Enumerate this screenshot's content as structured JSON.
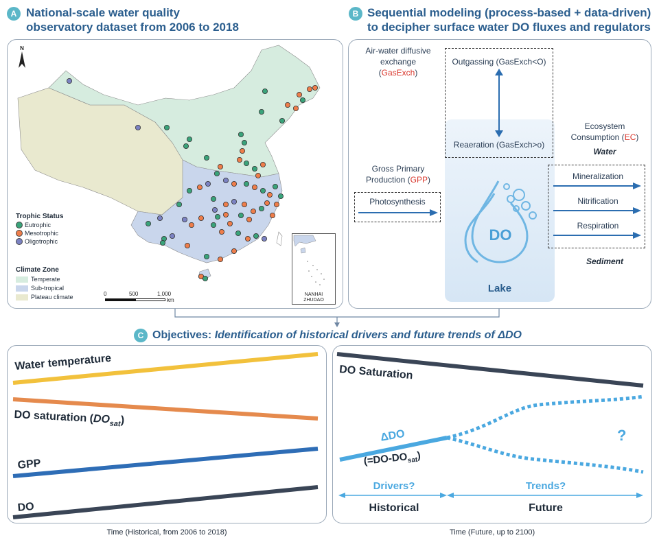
{
  "panel_a": {
    "badge": "A",
    "title_line1": "National-scale water quality",
    "title_line2": "observatory dataset from 2006 to 2018",
    "north": "N",
    "legend_trophic_title": "Trophic Status",
    "legend_trophic": [
      "Eutrophic",
      "Mesotrophic",
      "Oligotrophic"
    ],
    "legend_climate_title": "Climate Zone",
    "legend_climate": [
      "Temperate",
      "Sub-tropical",
      "Plateau climate"
    ],
    "scale_ticks": [
      "0",
      "500",
      "1,000"
    ],
    "scale_unit": "km",
    "inset_label_1": "NANHAI",
    "inset_label_2": "ZHUDAO",
    "colors": {
      "eutrophic": "#3aa37a",
      "mesotrophic": "#ee7d4a",
      "oligotrophic": "#7b82c2",
      "temperate": "#d6ecdf",
      "subtropical": "#c9d6ec",
      "plateau": "#e9e9cf"
    }
  },
  "panel_b": {
    "badge": "B",
    "title_line1": "Sequential modeling (process-based + data-driven)",
    "title_line2": "to decipher surface water DO fluxes and regulators",
    "gasexch_label_1": "Air-water diffusive",
    "gasexch_label_2": "exchange (",
    "gasexch_abbr": "GasExch",
    "gasexch_close": ")",
    "outgassing": "Outgassing (GasExch<O)",
    "reaeration": "Reaeration (GasExch>o)",
    "gpp_label_1": "Gross Primary",
    "gpp_label_2": "Production (",
    "gpp_abbr": "GPP",
    "gpp_close": ")",
    "photosynthesis": "Photosynthesis",
    "ec_label_1": "Ecosystem",
    "ec_label_2": "Consumption (",
    "ec_abbr": "EC",
    "ec_close": ")",
    "water": "Water",
    "processes": [
      "Mineralization",
      "Nitrification",
      "Respiration"
    ],
    "sediment": "Sediment",
    "do_label": "DO",
    "lake": "Lake"
  },
  "panel_c": {
    "badge": "C",
    "title_bold": "Objectives: ",
    "title_italic": "Identification of historical drivers and future trends of ΔDO",
    "left": {
      "water_temperature": "Water temperature",
      "do_saturation_prefix": "DO saturation (",
      "do_sat_main": "DO",
      "do_sat_sub": "sat",
      "do_saturation_suffix": ")",
      "gpp": "GPP",
      "do": "DO",
      "caption": "Time (Historical, from 2006 to 2018)"
    },
    "right": {
      "do_saturation": "DO Saturation",
      "delta_do": "ΔDO",
      "delta_def_prefix": "(=DO-DO",
      "delta_def_sub": "sat",
      "delta_def_suffix": ")",
      "question": "?",
      "drivers": "Drivers?",
      "trends": "Trends?",
      "historical": "Historical",
      "future": "Future",
      "caption": "Time (Future, up to 2100)"
    }
  }
}
